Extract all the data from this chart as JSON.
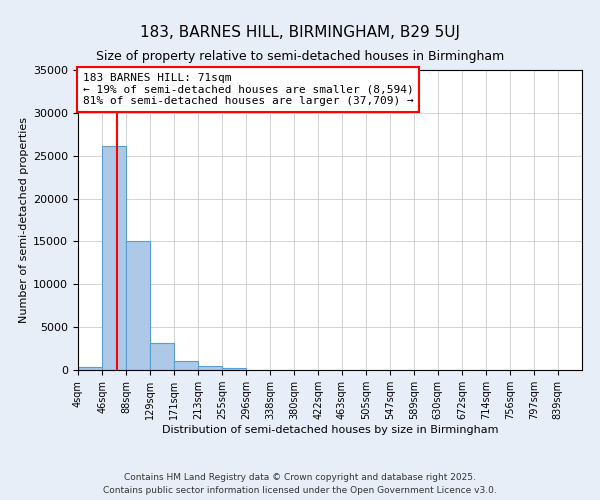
{
  "title": "183, BARNES HILL, BIRMINGHAM, B29 5UJ",
  "subtitle": "Size of property relative to semi-detached houses in Birmingham",
  "xlabel": "Distribution of semi-detached houses by size in Birmingham",
  "ylabel": "Number of semi-detached properties",
  "bin_labels": [
    "4sqm",
    "46sqm",
    "88sqm",
    "129sqm",
    "171sqm",
    "213sqm",
    "255sqm",
    "296sqm",
    "338sqm",
    "380sqm",
    "422sqm",
    "463sqm",
    "505sqm",
    "547sqm",
    "589sqm",
    "630sqm",
    "672sqm",
    "714sqm",
    "756sqm",
    "797sqm",
    "839sqm"
  ],
  "bin_edges": [
    4,
    46,
    88,
    129,
    171,
    213,
    255,
    296,
    338,
    380,
    422,
    463,
    505,
    547,
    589,
    630,
    672,
    714,
    756,
    797,
    839
  ],
  "bar_heights": [
    400,
    26100,
    15100,
    3100,
    1100,
    500,
    200,
    0,
    0,
    0,
    0,
    0,
    0,
    0,
    0,
    0,
    0,
    0,
    0,
    0
  ],
  "bar_color": "#aec8e8",
  "bar_edge_color": "#5a9fd4",
  "property_line_x": 71,
  "property_line_color": "red",
  "annotation_line1": "183 BARNES HILL: 71sqm",
  "annotation_line2": "← 19% of semi-detached houses are smaller (8,594)",
  "annotation_line3": "81% of semi-detached houses are larger (37,709) →",
  "annotation_box_color": "white",
  "annotation_box_edge_color": "red",
  "ylim": [
    0,
    35000
  ],
  "yticks": [
    0,
    5000,
    10000,
    15000,
    20000,
    25000,
    30000,
    35000
  ],
  "background_color": "#e8eef8",
  "plot_bg_color": "white",
  "footer_line1": "Contains HM Land Registry data © Crown copyright and database right 2025.",
  "footer_line2": "Contains public sector information licensed under the Open Government Licence v3.0.",
  "title_fontsize": 11,
  "subtitle_fontsize": 9,
  "annotation_fontsize": 8,
  "footer_fontsize": 6.5
}
